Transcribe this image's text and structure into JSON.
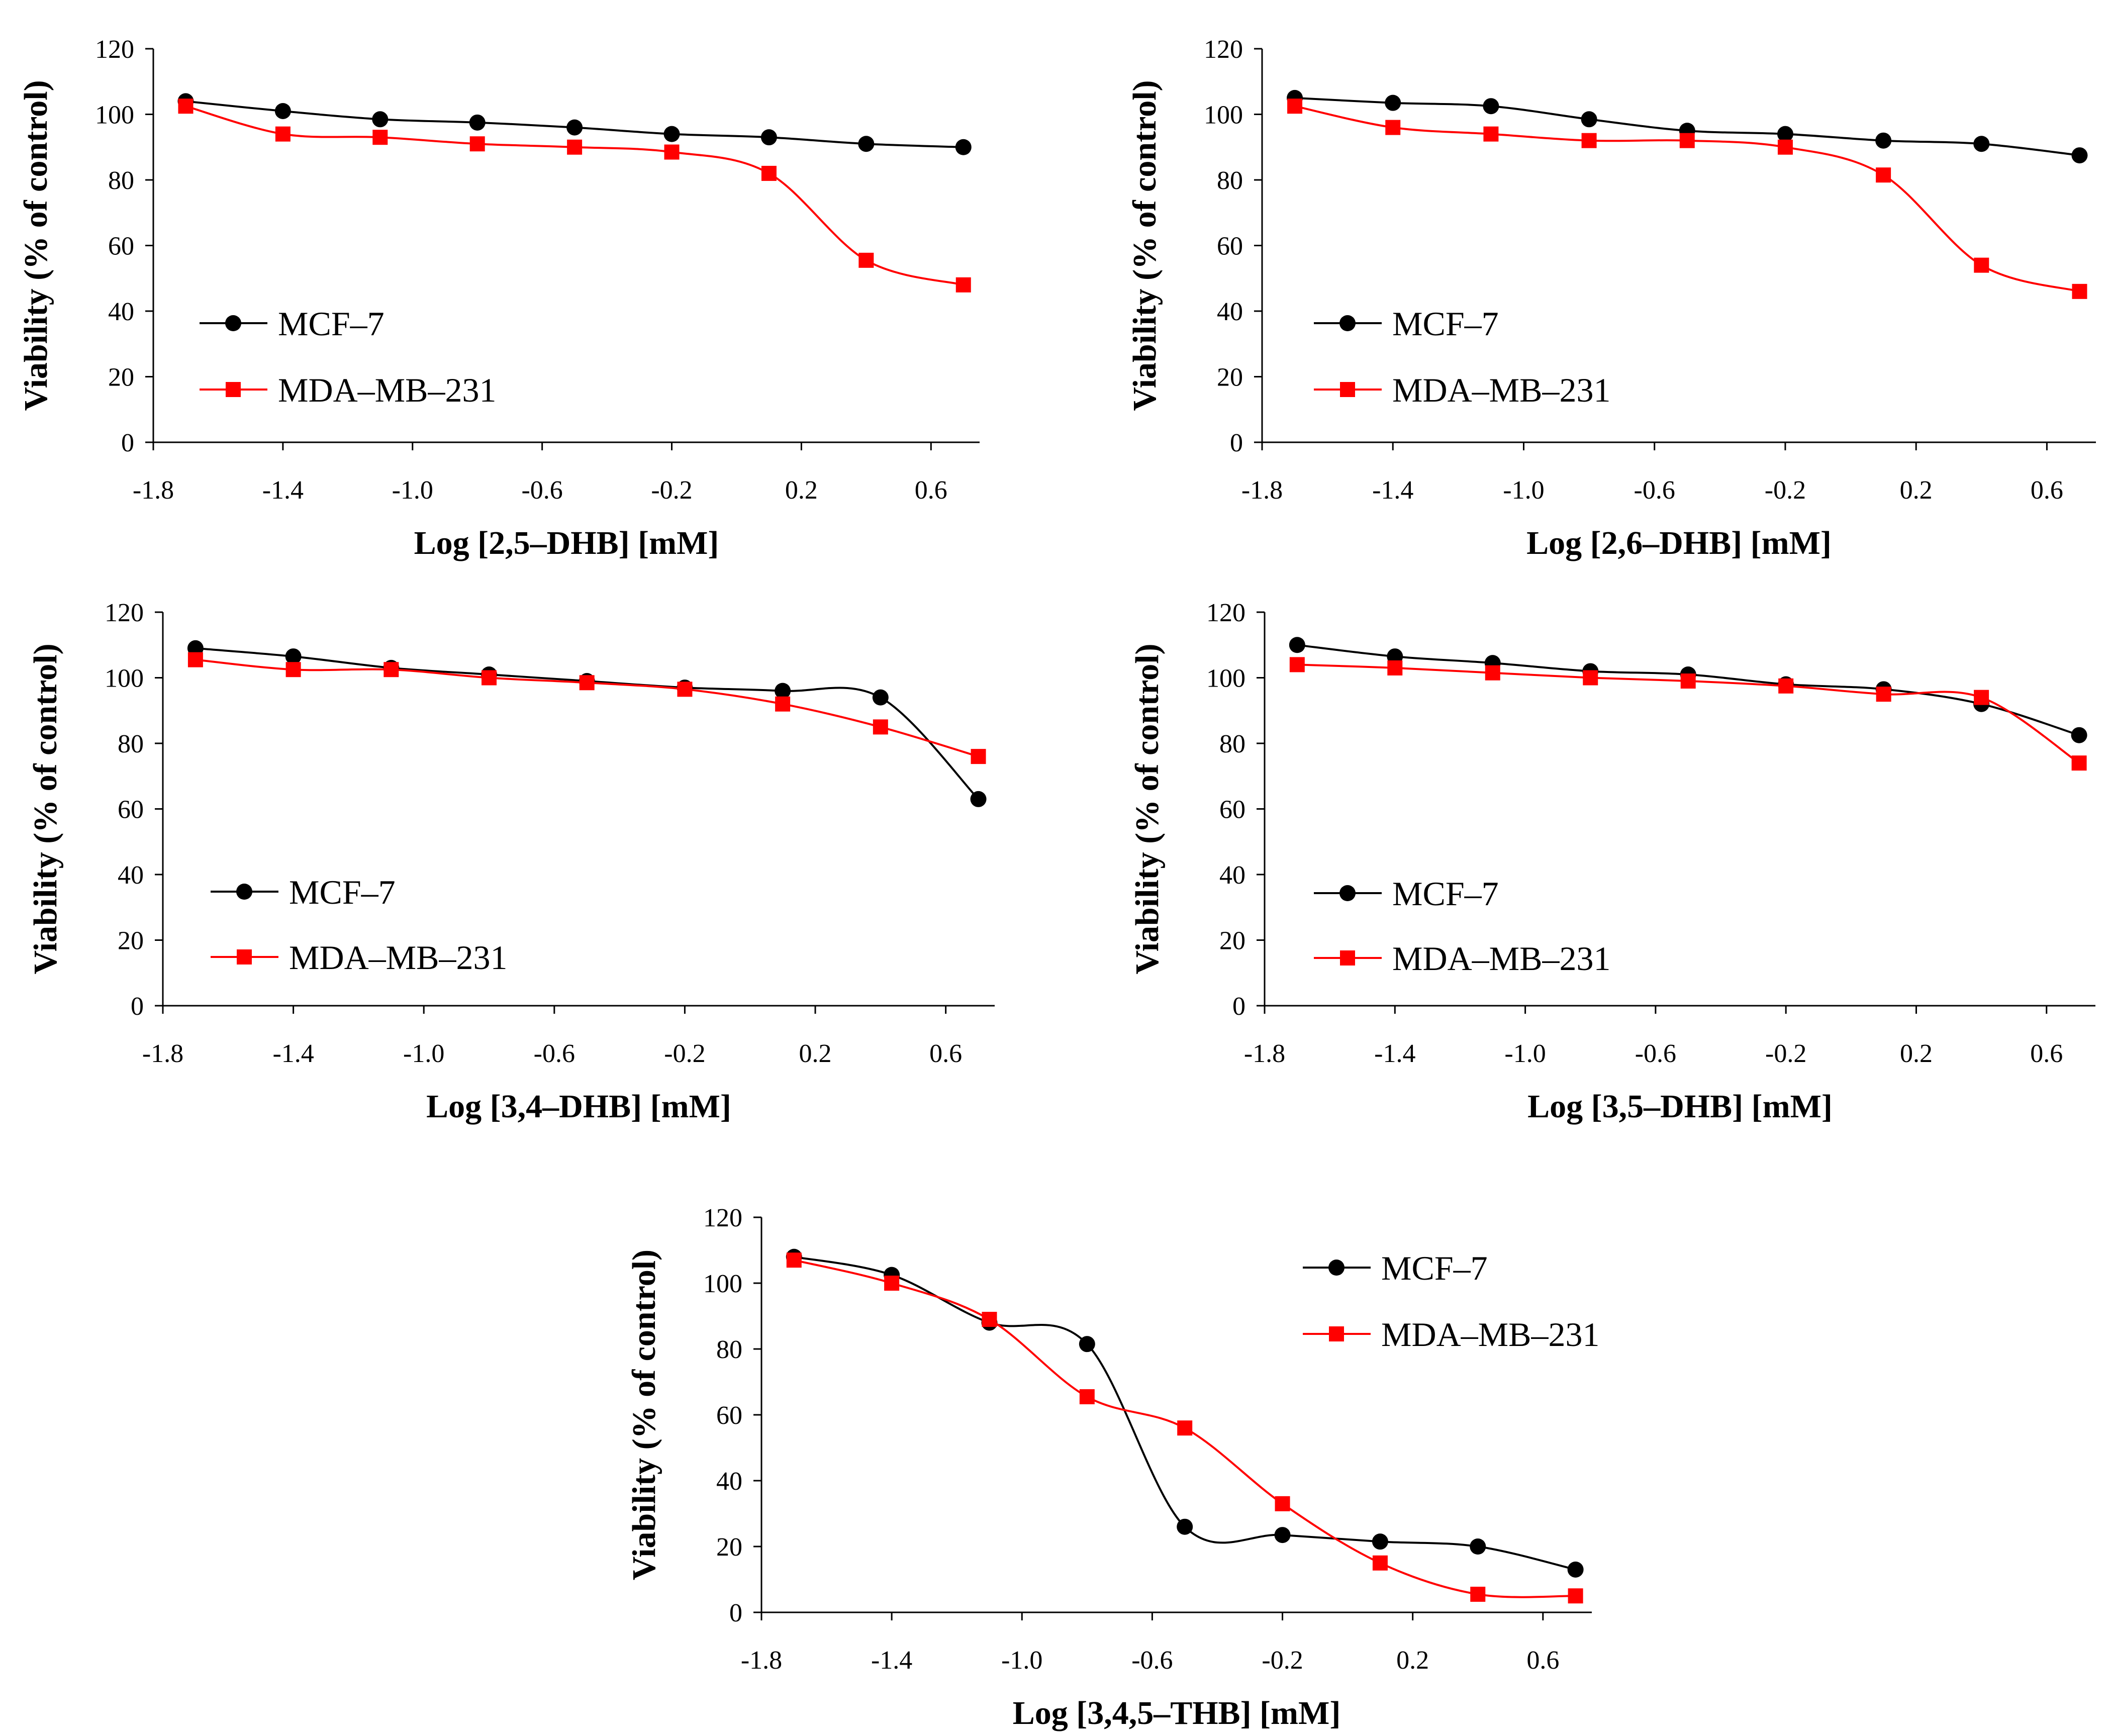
{
  "chart_data": [
    {
      "type": "line",
      "xlabel": "Log [2,5–DHB] [mM]",
      "ylabel": "Viability (% of control)",
      "xlim": [
        -1.8,
        0.75
      ],
      "ylim": [
        0,
        120
      ],
      "x_ticks": [
        "-1.8",
        "-1.4",
        "-1.0",
        "-0.6",
        "-0.2",
        "0.2",
        "0.6"
      ],
      "y_ticks": [
        "0",
        "20",
        "40",
        "60",
        "80",
        "100",
        "120"
      ],
      "grid": false,
      "legend": "middle-left",
      "smooth": true,
      "x": [
        -1.7,
        -1.4,
        -1.1,
        -0.8,
        -0.5,
        -0.2,
        0.1,
        0.4,
        0.7
      ],
      "series": [
        {
          "name": "MCF–7",
          "color": "#000000",
          "marker": "circle",
          "values": [
            104,
            101,
            98.5,
            97.5,
            96,
            94,
            93,
            91,
            90
          ]
        },
        {
          "name": "MDA–MB–231",
          "color": "#ff0000",
          "marker": "square",
          "values": [
            102.5,
            94,
            93,
            91,
            90,
            88.5,
            82,
            55.5,
            48
          ]
        }
      ]
    },
    {
      "type": "line",
      "xlabel": "Log [2,6–DHB] [mM]",
      "ylabel": "Viability (% of control)",
      "xlim": [
        -1.8,
        0.75
      ],
      "ylim": [
        0,
        120
      ],
      "x_ticks": [
        "-1.8",
        "-1.4",
        "-1.0",
        "-0.6",
        "-0.2",
        "0.2",
        "0.6"
      ],
      "y_ticks": [
        "0",
        "20",
        "40",
        "60",
        "80",
        "100",
        "120"
      ],
      "grid": false,
      "legend": "middle-left",
      "smooth": true,
      "x": [
        -1.7,
        -1.4,
        -1.1,
        -0.8,
        -0.5,
        -0.2,
        0.1,
        0.4,
        0.7
      ],
      "series": [
        {
          "name": "MCF–7",
          "color": "#000000",
          "marker": "circle",
          "values": [
            105,
            103.5,
            102.5,
            98.5,
            95,
            94,
            92,
            91,
            87.5
          ]
        },
        {
          "name": "MDA–MB–231",
          "color": "#ff0000",
          "marker": "square",
          "values": [
            102.5,
            96,
            94,
            92,
            92,
            90,
            81.5,
            54,
            46
          ]
        }
      ]
    },
    {
      "type": "line",
      "xlabel": "Log [3,4–DHB] [mM]",
      "ylabel": "Viability (% of control)",
      "xlim": [
        -1.8,
        0.75
      ],
      "ylim": [
        0,
        120
      ],
      "x_ticks": [
        "-1.8",
        "-1.4",
        "-1.0",
        "-0.6",
        "-0.2",
        "0.2",
        "0.6"
      ],
      "y_ticks": [
        "0",
        "20",
        "40",
        "60",
        "80",
        "100",
        "120"
      ],
      "grid": false,
      "legend": "middle-left",
      "smooth": true,
      "x": [
        -1.7,
        -1.4,
        -1.1,
        -0.8,
        -0.5,
        -0.2,
        0.1,
        0.4,
        0.7
      ],
      "series": [
        {
          "name": "MCF–7",
          "color": "#000000",
          "marker": "circle",
          "values": [
            109,
            106.5,
            103,
            101,
            99,
            97,
            96,
            94,
            63
          ]
        },
        {
          "name": "MDA–MB–231",
          "color": "#ff0000",
          "marker": "square",
          "values": [
            105.5,
            102.5,
            102.5,
            100,
            98.5,
            96.5,
            92,
            85,
            76
          ]
        }
      ]
    },
    {
      "type": "line",
      "xlabel": "Log [3,5–DHB] [mM]",
      "ylabel": "Viability (% of control)",
      "xlim": [
        -1.8,
        0.75
      ],
      "ylim": [
        0,
        120
      ],
      "x_ticks": [
        "-1.8",
        "-1.4",
        "-1.0",
        "-0.6",
        "-0.2",
        "0.2",
        "0.6"
      ],
      "y_ticks": [
        "0",
        "20",
        "40",
        "60",
        "80",
        "100",
        "120"
      ],
      "grid": false,
      "legend": "middle-left",
      "smooth": true,
      "x": [
        -1.7,
        -1.4,
        -1.1,
        -0.8,
        -0.5,
        -0.2,
        0.1,
        0.4,
        0.7
      ],
      "series": [
        {
          "name": "MCF–7",
          "color": "#000000",
          "marker": "circle",
          "values": [
            110,
            106.5,
            104.5,
            102,
            101,
            98,
            96.5,
            92,
            82.5
          ]
        },
        {
          "name": "MDA–MB–231",
          "color": "#ff0000",
          "marker": "square",
          "values": [
            104,
            103,
            101.5,
            100,
            99,
            97.5,
            95,
            94,
            74
          ]
        }
      ]
    },
    {
      "type": "line",
      "xlabel": "Log [3,4,5–THB] [mM]",
      "ylabel": "Viability (% of control)",
      "xlim": [
        -1.8,
        0.75
      ],
      "ylim": [
        0,
        120
      ],
      "x_ticks": [
        "-1.8",
        "-1.4",
        "-1.0",
        "-0.6",
        "-0.2",
        "0.2",
        "0.6"
      ],
      "y_ticks": [
        "0",
        "20",
        "40",
        "60",
        "80",
        "100",
        "120"
      ],
      "grid": false,
      "legend": "top-right",
      "smooth": true,
      "x": [
        -1.7,
        -1.4,
        -1.1,
        -0.8,
        -0.5,
        -0.2,
        0.1,
        0.4,
        0.7
      ],
      "series": [
        {
          "name": "MCF–7",
          "color": "#000000",
          "marker": "circle",
          "values": [
            108,
            102.5,
            88,
            81.5,
            26,
            23.5,
            21.5,
            20,
            13
          ]
        },
        {
          "name": "MDA–MB–231",
          "color": "#ff0000",
          "marker": "square",
          "values": [
            107,
            100,
            89,
            65.5,
            56,
            33,
            15,
            5.5,
            5
          ]
        }
      ]
    }
  ]
}
